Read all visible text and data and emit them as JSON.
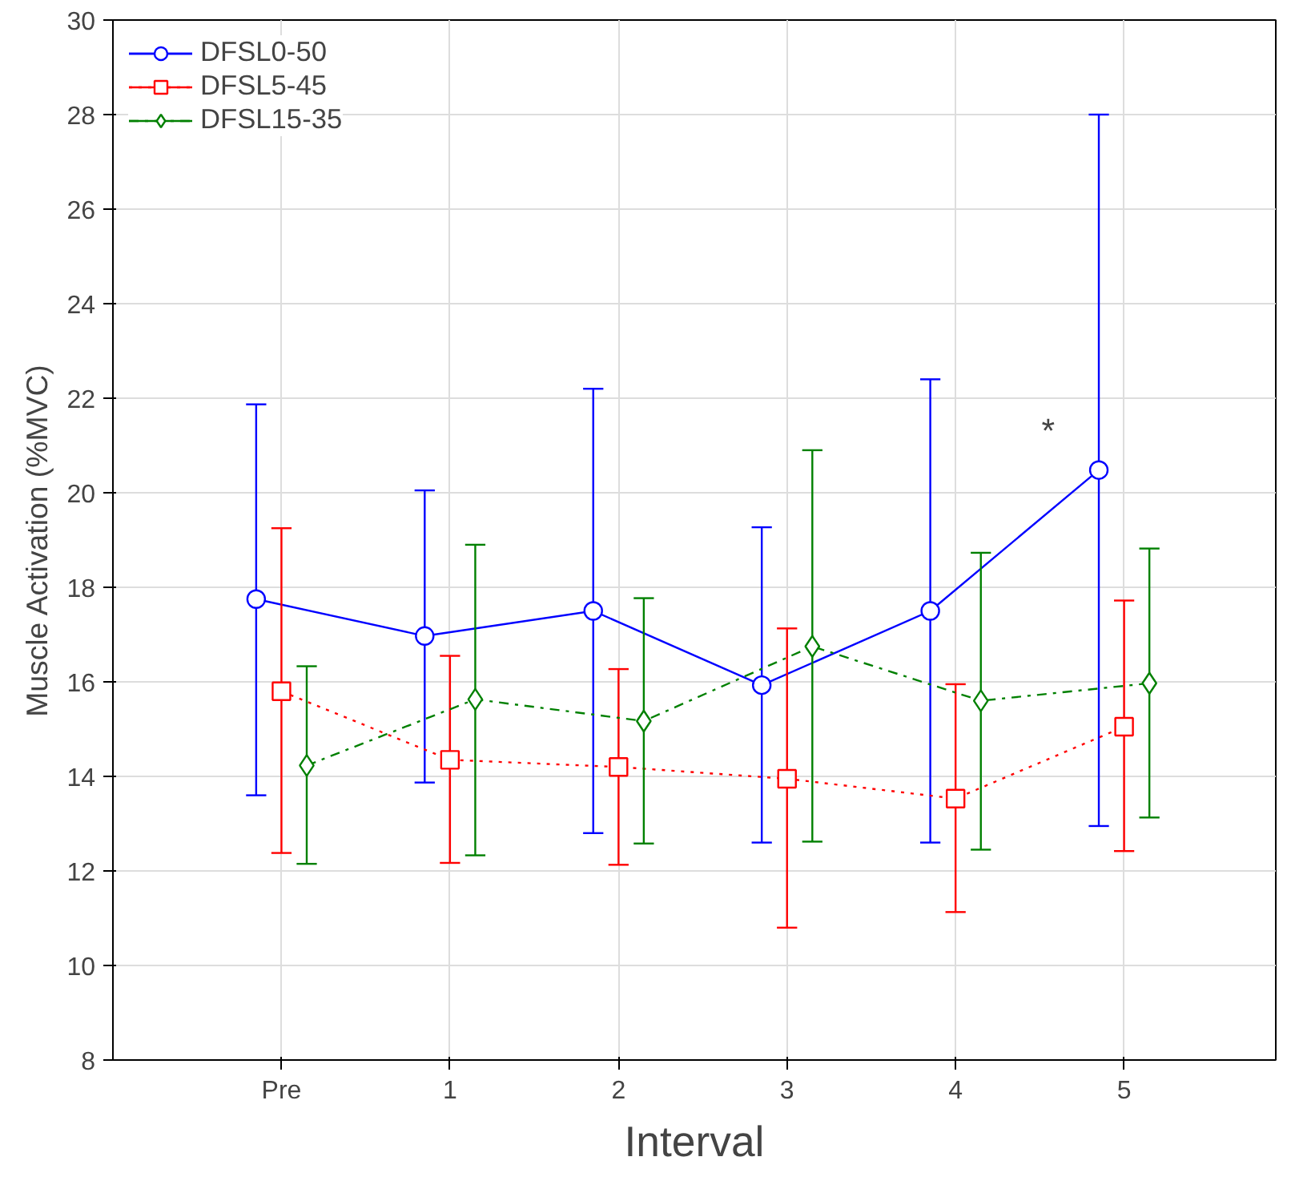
{
  "chart_data": {
    "type": "line",
    "xlabel": "Interval",
    "ylabel": "Muscle Activation (%MVC)",
    "categories": [
      "Pre",
      "1",
      "2",
      "3",
      "4",
      "5"
    ],
    "ylim": [
      8,
      30
    ],
    "yticks": [
      8,
      10,
      12,
      14,
      16,
      18,
      20,
      22,
      24,
      26,
      28,
      30
    ],
    "grid": true,
    "legend": "top left",
    "series": [
      {
        "name": "DFSL0-50",
        "color": "#0000ff",
        "marker": "circle",
        "line_style": "solid",
        "values": [
          17.75,
          16.97,
          17.5,
          15.93,
          17.5,
          20.48
        ],
        "errors": [
          [
            13.6,
            21.87
          ],
          [
            13.87,
            20.05
          ],
          [
            12.8,
            22.2
          ],
          [
            12.6,
            19.27
          ],
          [
            12.6,
            22.4
          ],
          [
            12.95,
            28.0
          ]
        ]
      },
      {
        "name": "DFSL5-45",
        "color": "#ff0000",
        "marker": "square",
        "line_style": "dotted",
        "values": [
          15.8,
          14.35,
          14.2,
          13.95,
          13.53,
          15.05
        ],
        "errors": [
          [
            12.38,
            19.25
          ],
          [
            12.17,
            16.55
          ],
          [
            12.13,
            16.27
          ],
          [
            10.8,
            17.13
          ],
          [
            11.13,
            15.95
          ],
          [
            12.42,
            17.72
          ]
        ]
      },
      {
        "name": "DFSL15-35",
        "color": "#008000",
        "marker": "diamond",
        "line_style": "dashdot",
        "values": [
          14.23,
          15.63,
          15.17,
          16.75,
          15.6,
          15.97
        ],
        "errors": [
          [
            12.15,
            16.33
          ],
          [
            12.33,
            18.9
          ],
          [
            12.58,
            17.77
          ],
          [
            12.62,
            20.9
          ],
          [
            12.45,
            18.73
          ],
          [
            13.13,
            18.82
          ]
        ]
      }
    ],
    "annotations": [
      "*"
    ]
  }
}
